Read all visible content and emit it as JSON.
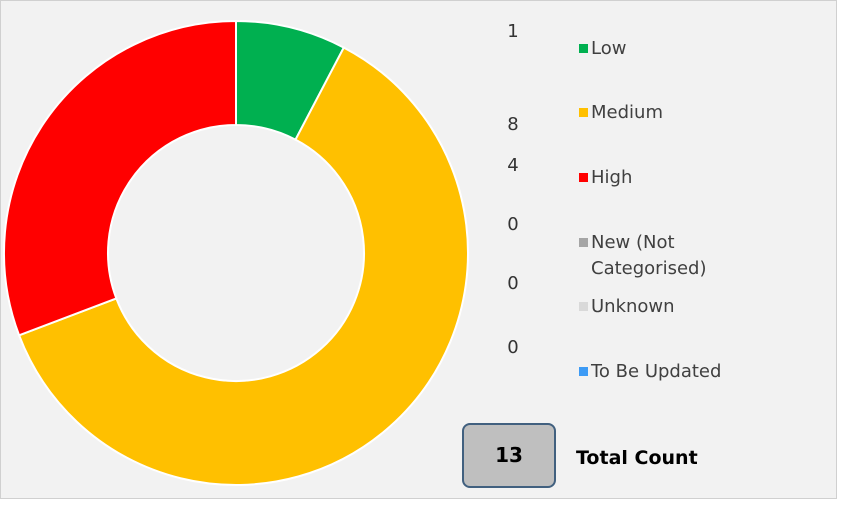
{
  "chart_data": {
    "type": "doughnut",
    "categories": [
      "Low",
      "Medium",
      "High",
      "New (Not Categorised)",
      "Unknown",
      "To Be Updated"
    ],
    "values": [
      1,
      8,
      4,
      0,
      0,
      0
    ],
    "colors": [
      "#00b050",
      "#ffc000",
      "#ff0000",
      "#a5a5a5",
      "#d9d9d9",
      "#3d9bf5"
    ],
    "total": 13,
    "total_label": "Total Count"
  }
}
